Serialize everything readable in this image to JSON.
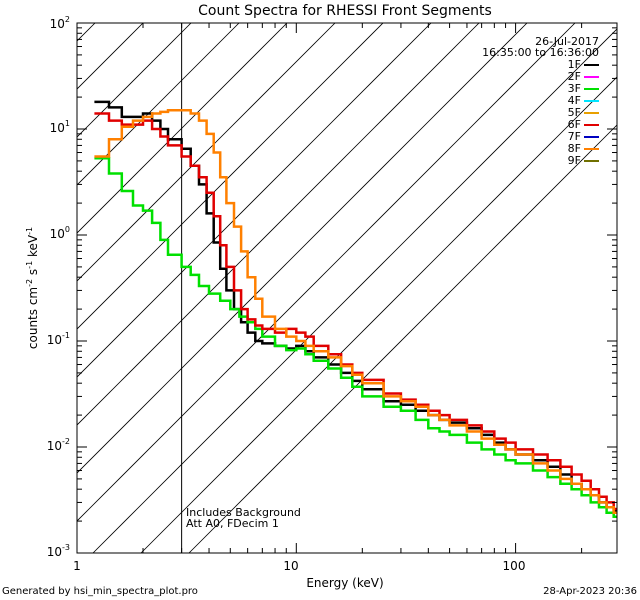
{
  "chart_data": {
    "type": "line",
    "title": "Count Spectra for RHESSI Front Segments",
    "xlabel": "Energy (keV)",
    "ylabel": "counts cm",
    "ylabel_parts": {
      "base": "counts cm",
      "e1": "-2",
      "mid1": " s",
      "e2": "-1",
      "mid2": " keV",
      "e3": "-1"
    },
    "x_scale": "log",
    "y_scale": "log",
    "xlim": [
      1.0,
      290
    ],
    "ylim": [
      0.001,
      100
    ],
    "x_tick_labels": [
      "1",
      "10",
      "100"
    ],
    "y_tick_labels": [
      {
        "value": 0.001,
        "base": "10",
        "exp": "-3"
      },
      {
        "value": 0.01,
        "base": "10",
        "exp": "-2"
      },
      {
        "value": 0.1,
        "base": "10",
        "exp": "-1"
      },
      {
        "value": 1,
        "base": "10",
        "exp": "0"
      },
      {
        "value": 10,
        "base": "10",
        "exp": "1"
      },
      {
        "value": 100,
        "base": "10",
        "exp": "2"
      }
    ],
    "date": "26-Jul-2017",
    "time_range": "16:35:00 to 16:36:00",
    "shaded_region_max_keV": 3,
    "annotations": [
      "Includes Background",
      "Att A0, FDecim 1"
    ],
    "legend": [
      {
        "name": "1F",
        "color": "#000000"
      },
      {
        "name": "2F",
        "color": "#ff00ff"
      },
      {
        "name": "3F",
        "color": "#00e000"
      },
      {
        "name": "4F",
        "color": "#00e5ff"
      },
      {
        "name": "5F",
        "color": "#e8a000"
      },
      {
        "name": "6F",
        "color": "#e00000"
      },
      {
        "name": "7F",
        "color": "#0000c0"
      },
      {
        "name": "8F",
        "color": "#ff8000"
      },
      {
        "name": "9F",
        "color": "#707000"
      }
    ],
    "series": [
      {
        "name": "1F",
        "color": "#000000",
        "points": [
          [
            1.2,
            18
          ],
          [
            1.4,
            16
          ],
          [
            1.6,
            13
          ],
          [
            1.8,
            13
          ],
          [
            2.0,
            14
          ],
          [
            2.2,
            12
          ],
          [
            2.4,
            10
          ],
          [
            2.6,
            8
          ],
          [
            3.0,
            6.5
          ],
          [
            3.3,
            4.5
          ],
          [
            3.6,
            3.0
          ],
          [
            3.9,
            1.6
          ],
          [
            4.2,
            0.85
          ],
          [
            4.5,
            0.48
          ],
          [
            4.8,
            0.3
          ],
          [
            5.2,
            0.2
          ],
          [
            5.6,
            0.15
          ],
          [
            6.0,
            0.12
          ],
          [
            6.5,
            0.1
          ],
          [
            7.0,
            0.095
          ],
          [
            8,
            0.09
          ],
          [
            9,
            0.085
          ],
          [
            10,
            0.09
          ],
          [
            11,
            0.08
          ],
          [
            12,
            0.07
          ],
          [
            14,
            0.06
          ],
          [
            16,
            0.05
          ],
          [
            18,
            0.042
          ],
          [
            20,
            0.035
          ],
          [
            25,
            0.027
          ],
          [
            30,
            0.025
          ],
          [
            35,
            0.022
          ],
          [
            40,
            0.02
          ],
          [
            45,
            0.018
          ],
          [
            50,
            0.017
          ],
          [
            60,
            0.015
          ],
          [
            70,
            0.013
          ],
          [
            80,
            0.011
          ],
          [
            90,
            0.0095
          ],
          [
            100,
            0.0085
          ],
          [
            120,
            0.0075
          ],
          [
            140,
            0.0065
          ],
          [
            160,
            0.0055
          ],
          [
            180,
            0.0045
          ],
          [
            200,
            0.004
          ],
          [
            220,
            0.0035
          ],
          [
            240,
            0.003
          ],
          [
            260,
            0.0027
          ],
          [
            280,
            0.0025
          ]
        ]
      },
      {
        "name": "3F",
        "color": "#00e000",
        "points": [
          [
            1.2,
            5.3
          ],
          [
            1.4,
            3.8
          ],
          [
            1.6,
            2.6
          ],
          [
            1.8,
            1.9
          ],
          [
            2.0,
            1.7
          ],
          [
            2.2,
            1.3
          ],
          [
            2.4,
            0.9
          ],
          [
            2.6,
            0.65
          ],
          [
            3.0,
            0.5
          ],
          [
            3.3,
            0.42
          ],
          [
            3.6,
            0.33
          ],
          [
            4.0,
            0.28
          ],
          [
            4.5,
            0.24
          ],
          [
            5.0,
            0.2
          ],
          [
            5.5,
            0.17
          ],
          [
            6.0,
            0.15
          ],
          [
            6.5,
            0.13
          ],
          [
            7.0,
            0.11
          ],
          [
            8,
            0.09
          ],
          [
            9,
            0.082
          ],
          [
            10,
            0.085
          ],
          [
            11,
            0.075
          ],
          [
            12,
            0.065
          ],
          [
            14,
            0.055
          ],
          [
            16,
            0.045
          ],
          [
            18,
            0.037
          ],
          [
            20,
            0.03
          ],
          [
            25,
            0.024
          ],
          [
            30,
            0.022
          ],
          [
            35,
            0.018
          ],
          [
            40,
            0.015
          ],
          [
            45,
            0.014
          ],
          [
            50,
            0.013
          ],
          [
            60,
            0.011
          ],
          [
            70,
            0.0095
          ],
          [
            80,
            0.0085
          ],
          [
            90,
            0.0075
          ],
          [
            100,
            0.007
          ],
          [
            120,
            0.006
          ],
          [
            140,
            0.0052
          ],
          [
            160,
            0.0045
          ],
          [
            180,
            0.004
          ],
          [
            200,
            0.0035
          ],
          [
            220,
            0.003
          ],
          [
            240,
            0.0027
          ],
          [
            260,
            0.0024
          ],
          [
            280,
            0.0022
          ]
        ]
      },
      {
        "name": "6F",
        "color": "#e00000",
        "points": [
          [
            1.2,
            14
          ],
          [
            1.4,
            12
          ],
          [
            1.6,
            11
          ],
          [
            1.8,
            11
          ],
          [
            2.0,
            12
          ],
          [
            2.2,
            10
          ],
          [
            2.4,
            8.5
          ],
          [
            2.6,
            7
          ],
          [
            3.0,
            5.5
          ],
          [
            3.3,
            4.5
          ],
          [
            3.6,
            3.5
          ],
          [
            3.9,
            2.5
          ],
          [
            4.2,
            1.5
          ],
          [
            4.5,
            0.8
          ],
          [
            4.8,
            0.5
          ],
          [
            5.2,
            0.3
          ],
          [
            5.6,
            0.2
          ],
          [
            6.0,
            0.16
          ],
          [
            6.5,
            0.14
          ],
          [
            7.0,
            0.13
          ],
          [
            8,
            0.12
          ],
          [
            9,
            0.13
          ],
          [
            10,
            0.12
          ],
          [
            11,
            0.11
          ],
          [
            12,
            0.09
          ],
          [
            14,
            0.075
          ],
          [
            16,
            0.06
          ],
          [
            18,
            0.05
          ],
          [
            20,
            0.043
          ],
          [
            25,
            0.032
          ],
          [
            30,
            0.028
          ],
          [
            35,
            0.025
          ],
          [
            40,
            0.022
          ],
          [
            45,
            0.02
          ],
          [
            50,
            0.018
          ],
          [
            60,
            0.016
          ],
          [
            70,
            0.014
          ],
          [
            80,
            0.012
          ],
          [
            90,
            0.011
          ],
          [
            100,
            0.0095
          ],
          [
            120,
            0.0085
          ],
          [
            140,
            0.0075
          ],
          [
            160,
            0.0065
          ],
          [
            180,
            0.0055
          ],
          [
            200,
            0.0048
          ],
          [
            220,
            0.004
          ],
          [
            240,
            0.0034
          ],
          [
            260,
            0.003
          ],
          [
            280,
            0.0026
          ]
        ]
      },
      {
        "name": "8F",
        "color": "#ff8000",
        "points": [
          [
            1.2,
            5.5
          ],
          [
            1.4,
            8
          ],
          [
            1.6,
            10.5
          ],
          [
            1.8,
            12
          ],
          [
            2.0,
            13
          ],
          [
            2.2,
            14
          ],
          [
            2.4,
            14.5
          ],
          [
            2.6,
            15
          ],
          [
            3.0,
            15
          ],
          [
            3.3,
            14
          ],
          [
            3.6,
            12
          ],
          [
            3.9,
            9
          ],
          [
            4.2,
            6
          ],
          [
            4.5,
            3.5
          ],
          [
            4.8,
            2
          ],
          [
            5.2,
            1.2
          ],
          [
            5.6,
            0.7
          ],
          [
            6.0,
            0.4
          ],
          [
            6.5,
            0.25
          ],
          [
            7.0,
            0.17
          ],
          [
            8,
            0.13
          ],
          [
            9,
            0.11
          ],
          [
            10,
            0.1
          ],
          [
            11,
            0.09
          ],
          [
            12,
            0.08
          ],
          [
            14,
            0.07
          ],
          [
            16,
            0.058
          ],
          [
            18,
            0.048
          ],
          [
            20,
            0.04
          ],
          [
            25,
            0.03
          ],
          [
            30,
            0.027
          ],
          [
            35,
            0.024
          ],
          [
            40,
            0.02
          ],
          [
            45,
            0.018
          ],
          [
            50,
            0.016
          ],
          [
            60,
            0.014
          ],
          [
            70,
            0.012
          ],
          [
            80,
            0.0105
          ],
          [
            90,
            0.0095
          ],
          [
            100,
            0.0085
          ],
          [
            120,
            0.007
          ],
          [
            140,
            0.006
          ],
          [
            160,
            0.005
          ],
          [
            180,
            0.0045
          ],
          [
            200,
            0.004
          ],
          [
            220,
            0.0035
          ],
          [
            240,
            0.003
          ],
          [
            260,
            0.0027
          ],
          [
            280,
            0.0024
          ]
        ]
      }
    ]
  },
  "footer": {
    "generated_by": "Generated by hsi_min_spectra_plot.pro",
    "timestamp": "28-Apr-2023 20:36"
  }
}
